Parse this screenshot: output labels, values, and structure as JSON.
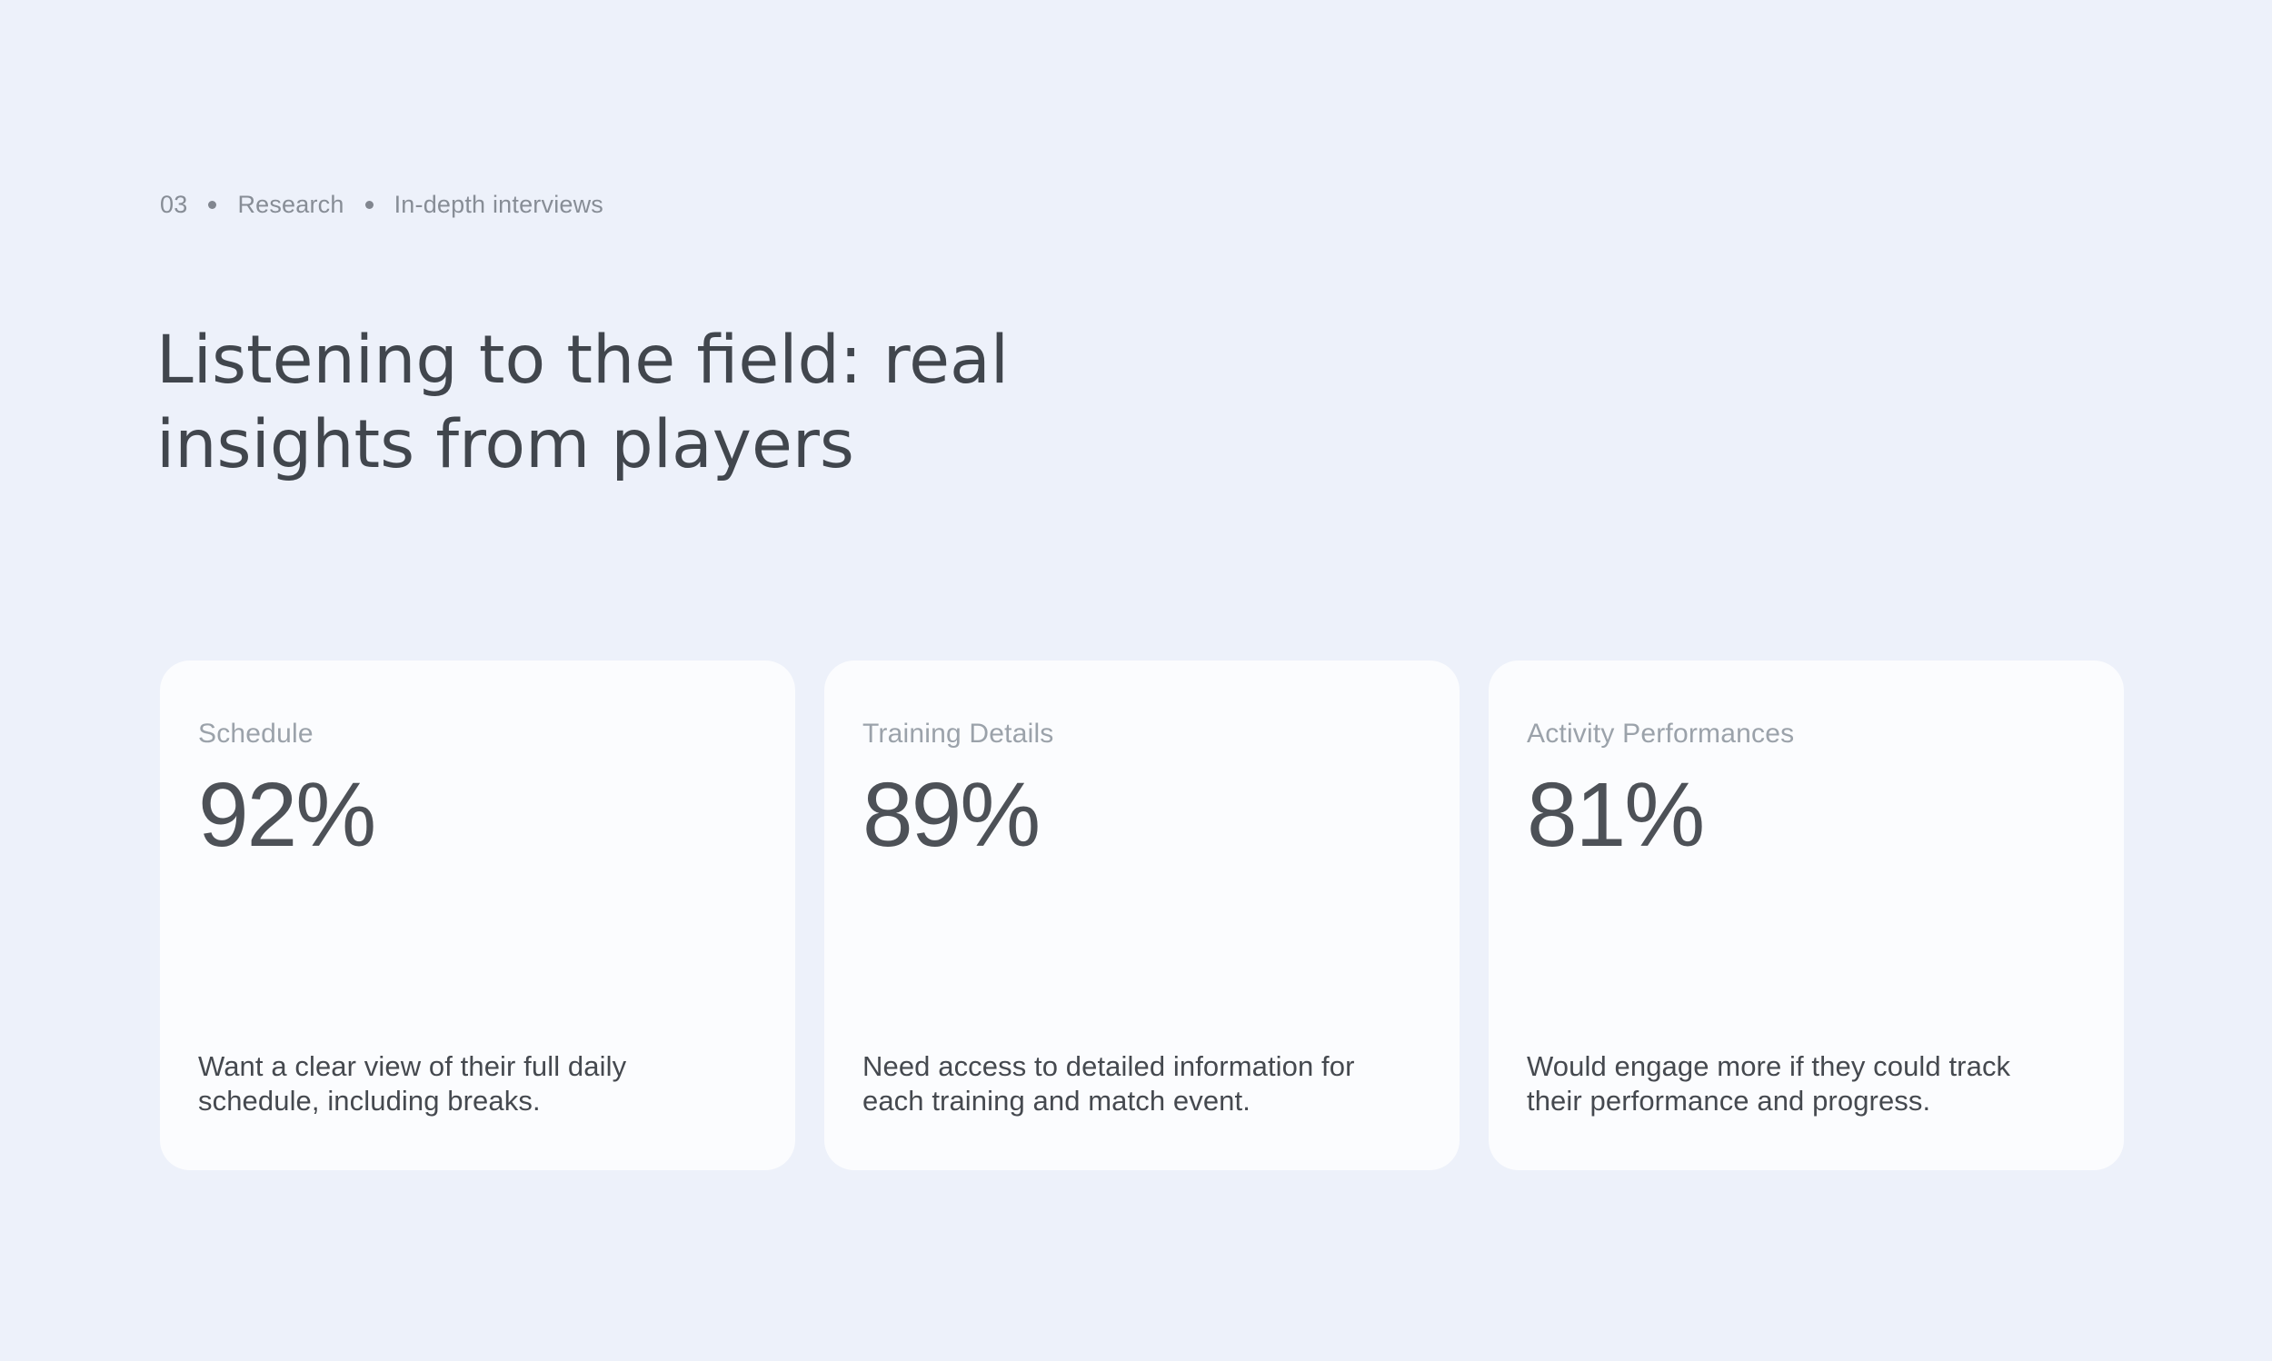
{
  "theme": {
    "page_background": "#EDF1FA",
    "card_background": "#FBFCFE",
    "heading_color": "#41464D",
    "breadcrumb_color": "#878D96",
    "label_color": "#9BA2AA",
    "value_color": "#4D5157",
    "description_color": "#45494F"
  },
  "breadcrumb": {
    "items": [
      "03",
      "Research",
      "In-depth interviews"
    ]
  },
  "heading": {
    "line1": "Listening to the field: real",
    "line2": "insights from players"
  },
  "cards": [
    {
      "label": "Schedule",
      "value": "92%",
      "description": "Want a clear view of their full daily schedule, including breaks."
    },
    {
      "label": "Training Details",
      "value": "89%",
      "description": "Need access to detailed information for each training and match event."
    },
    {
      "label": "Activity Performances",
      "value": "81%",
      "description": "Would engage more if they could track their performance and progress."
    }
  ]
}
